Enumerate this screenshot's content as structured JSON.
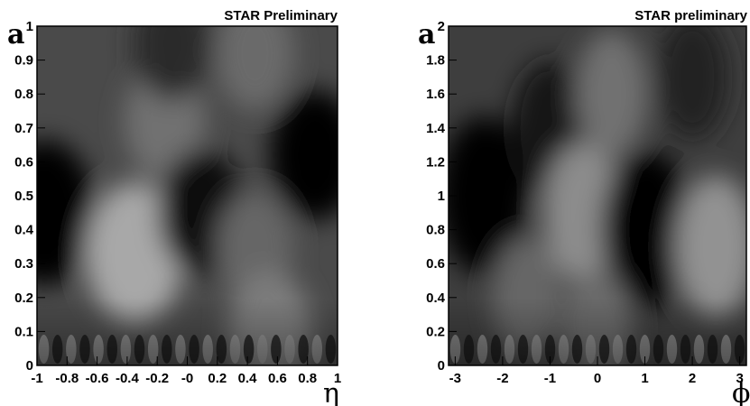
{
  "chart_data": [
    {
      "type": "heatmap",
      "title": "STAR Preliminary",
      "xlabel": "η",
      "ylabel": "a",
      "xlim": [
        -1,
        1
      ],
      "ylim": [
        0,
        1
      ],
      "grid": false,
      "colormap": "grayscale",
      "x_ticks": [
        "-1",
        "-0.8",
        "-0.6",
        "-0.4",
        "-0.2",
        "-0",
        "0.2",
        "0.4",
        "0.6",
        "0.8",
        "1"
      ],
      "x_tick_values": [
        -1,
        -0.8,
        -0.6,
        -0.4,
        -0.2,
        0,
        0.2,
        0.4,
        0.6,
        0.8,
        1
      ],
      "y_ticks": [
        "0",
        "0.1",
        "0.2",
        "0.3",
        "0.4",
        "0.5",
        "0.6",
        "0.7",
        "0.8",
        "0.9",
        "1"
      ],
      "y_tick_values": [
        0,
        0.1,
        0.2,
        0.3,
        0.4,
        0.5,
        0.6,
        0.7,
        0.8,
        0.9,
        1
      ],
      "features": [
        {
          "x": -0.95,
          "y": 0.45,
          "intensity": -0.95
        },
        {
          "x": -0.35,
          "y": 0.33,
          "intensity": 0.85
        },
        {
          "x": -0.15,
          "y": 0.72,
          "intensity": 0.35
        },
        {
          "x": 0.1,
          "y": 0.45,
          "intensity": -0.55
        },
        {
          "x": 0.45,
          "y": 0.92,
          "intensity": 0.3
        },
        {
          "x": 0.85,
          "y": 0.62,
          "intensity": -0.65
        },
        {
          "x": 0.45,
          "y": 0.35,
          "intensity": 0.25
        },
        {
          "x": 0.55,
          "y": 0.1,
          "intensity": 0.45
        },
        {
          "x": -0.1,
          "y": 0.95,
          "intensity": -0.3
        }
      ]
    },
    {
      "type": "heatmap",
      "title": "STAR preliminary",
      "xlabel": "ϕ",
      "ylabel": "a",
      "xlim": [
        -3.14,
        3.14
      ],
      "ylim": [
        0,
        2
      ],
      "grid": false,
      "colormap": "grayscale",
      "x_ticks": [
        "-3",
        "-2",
        "-1",
        "0",
        "1",
        "2",
        "3"
      ],
      "x_tick_values": [
        -3,
        -2,
        -1,
        0,
        1,
        2,
        3
      ],
      "y_ticks": [
        "0",
        "0.2",
        "0.4",
        "0.6",
        "0.8",
        "1",
        "1.2",
        "1.4",
        "1.6",
        "1.8",
        "2"
      ],
      "y_tick_values": [
        0,
        0.2,
        0.4,
        0.6,
        0.8,
        1,
        1.2,
        1.4,
        1.6,
        1.8,
        2
      ],
      "features": [
        {
          "x": -2.4,
          "y": 1.0,
          "intensity": -0.95
        },
        {
          "x": -1.0,
          "y": 1.4,
          "intensity": -0.5
        },
        {
          "x": -0.3,
          "y": 0.9,
          "intensity": 0.6
        },
        {
          "x": 0.3,
          "y": 1.6,
          "intensity": 0.35
        },
        {
          "x": 1.05,
          "y": 0.8,
          "intensity": -0.95
        },
        {
          "x": 2.5,
          "y": 0.7,
          "intensity": 0.65
        },
        {
          "x": 2.0,
          "y": 1.7,
          "intensity": -0.35
        },
        {
          "x": -1.5,
          "y": 0.4,
          "intensity": 0.25
        },
        {
          "x": 0.0,
          "y": 0.2,
          "intensity": 0.3
        }
      ]
    }
  ]
}
